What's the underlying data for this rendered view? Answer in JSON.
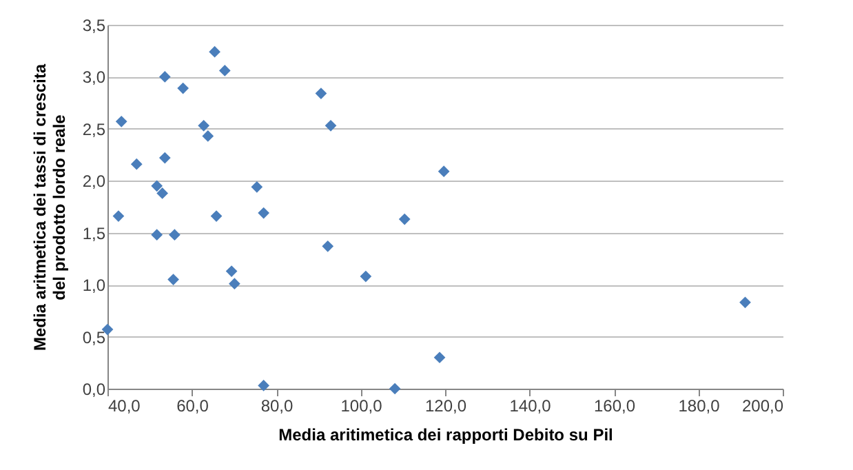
{
  "chart_data": {
    "type": "scatter",
    "xlabel": "Media aritimetica dei rapporti  Debito su Pil",
    "ylabel": "Media aritmetica dei tassi di crescita del prodotto lordo reale",
    "x": [
      40.0,
      42.6,
      43.3,
      46.9,
      51.7,
      53.0,
      53.6,
      53.6,
      51.7,
      55.9,
      55.6,
      57.9,
      62.8,
      63.8,
      65.4,
      67.8,
      65.8,
      69.4,
      70.1,
      75.4,
      77.0,
      77.0,
      90.6,
      92.9,
      92.2,
      101.2,
      108.1,
      110.4,
      119.7,
      118.7,
      191.1
    ],
    "series": [
      {
        "color": "#4a7ebb",
        "values": [
          0.57,
          1.66,
          2.57,
          2.16,
          1.95,
          1.88,
          2.22,
          3.0,
          1.48,
          1.48,
          1.05,
          2.89,
          2.53,
          2.43,
          3.24,
          3.06,
          1.66,
          1.13,
          1.01,
          1.94,
          1.69,
          0.03,
          2.84,
          2.53,
          1.37,
          1.08,
          0.0,
          1.63,
          2.09,
          0.3,
          0.83
        ]
      }
    ],
    "marker": "diamond",
    "grid": "y",
    "xlim": [
      40,
      200
    ],
    "xticks": [
      {
        "value": 40,
        "label": "40,0"
      },
      {
        "value": 60,
        "label": "60,0"
      },
      {
        "value": 80,
        "label": "80,0"
      },
      {
        "value": 100,
        "label": "100,0"
      },
      {
        "value": 120,
        "label": "120,0"
      },
      {
        "value": 140,
        "label": "140,0"
      },
      {
        "value": 160,
        "label": "160,0"
      },
      {
        "value": 180,
        "label": "180,0"
      },
      {
        "value": 200,
        "label": "200,0"
      }
    ],
    "ylim": [
      0,
      3.5
    ],
    "yticks": [
      {
        "value": 0,
        "label": "0,0"
      },
      {
        "value": 0.5,
        "label": "0,5"
      },
      {
        "value": 1,
        "label": "1,0"
      },
      {
        "value": 1.5,
        "label": "1,5"
      },
      {
        "value": 2,
        "label": "2,0"
      },
      {
        "value": 2.5,
        "label": "2,5"
      },
      {
        "value": 3,
        "label": "3,0"
      },
      {
        "value": 3.5,
        "label": "3,5"
      }
    ]
  }
}
